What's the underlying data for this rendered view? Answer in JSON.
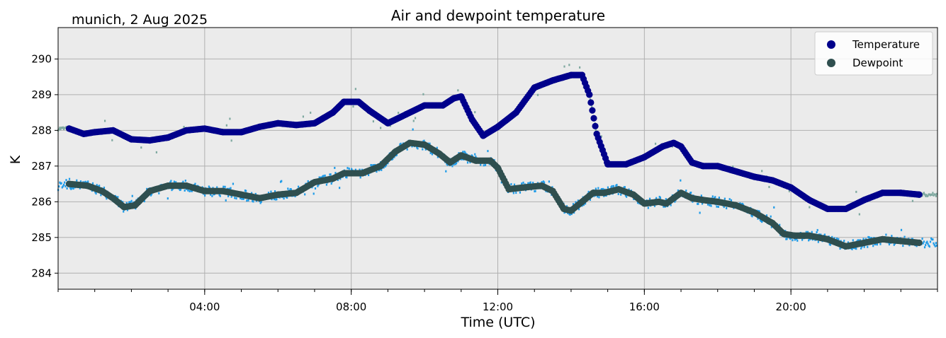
{
  "chart_data": {
    "type": "scatter",
    "title": "Air and dewpoint temperature",
    "subtitle": "munich, 2 Aug 2025",
    "xlabel": "Time (UTC)",
    "ylabel": "K",
    "xlim": [
      0,
      24
    ],
    "ylim": [
      283.55,
      290.88
    ],
    "grid": true,
    "legend_position": "top-right",
    "x_ticks": [
      {
        "value": 4,
        "label": "04:00"
      },
      {
        "value": 8,
        "label": "08:00"
      },
      {
        "value": 12,
        "label": "12:00"
      },
      {
        "value": 16,
        "label": "16:00"
      },
      {
        "value": 20,
        "label": "20:00"
      }
    ],
    "y_ticks": [
      284,
      285,
      286,
      287,
      288,
      289,
      290
    ],
    "series": [
      {
        "name": "Temperature",
        "color": "#00008b",
        "raw_color": "#7fa9a0",
        "x": [
          0.3,
          0.7,
          1.0,
          1.5,
          2.0,
          2.5,
          3.0,
          3.5,
          4.0,
          4.5,
          5.0,
          5.5,
          6.0,
          6.5,
          7.0,
          7.5,
          7.8,
          8.2,
          8.5,
          9.0,
          9.5,
          10.0,
          10.5,
          10.8,
          11.0,
          11.3,
          11.6,
          12.0,
          12.5,
          13.0,
          13.5,
          14.0,
          14.3,
          14.5,
          14.7,
          15.0,
          15.5,
          16.0,
          16.5,
          16.8,
          17.0,
          17.3,
          17.6,
          18.0,
          18.5,
          19.0,
          19.5,
          20.0,
          20.5,
          21.0,
          21.5,
          22.0,
          22.5,
          23.0,
          23.5
        ],
        "values": [
          288.05,
          287.9,
          287.95,
          288.0,
          287.75,
          287.72,
          287.8,
          288.0,
          288.05,
          287.95,
          287.95,
          288.1,
          288.2,
          288.15,
          288.2,
          288.5,
          288.8,
          288.8,
          288.55,
          288.2,
          288.45,
          288.7,
          288.7,
          288.9,
          288.95,
          288.3,
          287.85,
          288.1,
          288.5,
          289.2,
          289.4,
          289.55,
          289.55,
          289.0,
          287.9,
          287.05,
          287.05,
          287.25,
          287.55,
          287.65,
          287.55,
          287.1,
          287.0,
          287.0,
          286.85,
          286.7,
          286.6,
          286.4,
          286.05,
          285.8,
          285.8,
          286.05,
          286.25,
          286.25,
          286.2
        ]
      },
      {
        "name": "Dewpoint",
        "color": "#2f4f4f",
        "raw_color": "#1e9be8",
        "x": [
          0.3,
          0.8,
          1.2,
          1.5,
          1.8,
          2.1,
          2.5,
          3.0,
          3.5,
          4.0,
          4.5,
          5.0,
          5.5,
          6.0,
          6.5,
          7.0,
          7.5,
          7.8,
          8.3,
          8.8,
          9.2,
          9.6,
          10.0,
          10.4,
          10.7,
          11.0,
          11.4,
          11.8,
          12.0,
          12.3,
          12.7,
          13.2,
          13.5,
          13.8,
          14.0,
          14.3,
          14.6,
          14.9,
          15.3,
          15.7,
          16.0,
          16.4,
          16.6,
          16.8,
          17.0,
          17.3,
          17.6,
          18.0,
          18.5,
          19.0,
          19.5,
          19.8,
          20.1,
          20.5,
          21.0,
          21.5,
          22.0,
          22.5,
          23.0,
          23.5
        ],
        "values": [
          286.5,
          286.45,
          286.3,
          286.1,
          285.85,
          285.9,
          286.3,
          286.45,
          286.45,
          286.3,
          286.3,
          286.2,
          286.1,
          286.2,
          286.25,
          286.55,
          286.65,
          286.8,
          286.8,
          287.0,
          287.4,
          287.65,
          287.6,
          287.35,
          287.1,
          287.3,
          287.15,
          287.15,
          286.95,
          286.35,
          286.4,
          286.45,
          286.3,
          285.8,
          285.75,
          286.0,
          286.25,
          286.25,
          286.35,
          286.2,
          285.95,
          286.0,
          285.95,
          286.1,
          286.25,
          286.1,
          286.05,
          286.0,
          285.9,
          285.7,
          285.4,
          285.1,
          285.05,
          285.05,
          284.95,
          284.75,
          284.85,
          284.95,
          284.9,
          284.85
        ]
      }
    ]
  },
  "colors": {
    "plot_background": "#ebebeb",
    "grid": "#b0b0b0"
  }
}
